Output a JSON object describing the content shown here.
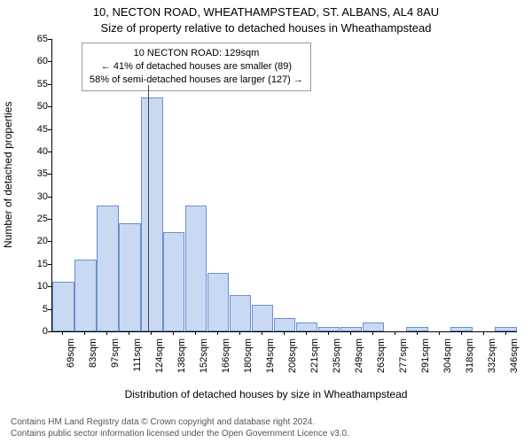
{
  "chart": {
    "type": "histogram",
    "title_line1": "10, NECTON ROAD, WHEATHAMPSTEAD, ST. ALBANS, AL4 8AU",
    "title_line2": "Size of property relative to detached houses in Wheathampstead",
    "ylabel": "Number of detached properties",
    "xlabel": "Distribution of detached houses by size in Wheathampstead",
    "background_color": "#ffffff",
    "axis_color": "#000000",
    "bar_fill": "#c9d9f2",
    "bar_border": "#6a8fd0",
    "ylim": [
      0,
      65
    ],
    "ytick_step": 5,
    "yticks": [
      0,
      5,
      10,
      15,
      20,
      25,
      30,
      35,
      40,
      45,
      50,
      55,
      60,
      65
    ],
    "x_categories": [
      "69sqm",
      "83sqm",
      "97sqm",
      "111sqm",
      "124sqm",
      "138sqm",
      "152sqm",
      "166sqm",
      "180sqm",
      "194sqm",
      "208sqm",
      "221sqm",
      "235sqm",
      "249sqm",
      "263sqm",
      "277sqm",
      "291sqm",
      "304sqm",
      "318sqm",
      "332sqm",
      "346sqm"
    ],
    "values": [
      11,
      16,
      28,
      24,
      52,
      22,
      28,
      13,
      8,
      6,
      3,
      2,
      1,
      1,
      2,
      0,
      1,
      0,
      1,
      0,
      1
    ],
    "bar_width_ratio": 0.98,
    "title_fontsize": 13,
    "label_fontsize": 12,
    "tick_fontsize": 11,
    "marker": {
      "bin_index": 4,
      "position_in_bin": 0.35
    },
    "annotation": {
      "line1": "10 NECTON ROAD: 129sqm",
      "line2": "← 41% of detached houses are smaller (89)",
      "line3": "58% of semi-detached houses are larger (127) →"
    }
  },
  "footer": {
    "line1": "Contains HM Land Registry data © Crown copyright and database right 2024.",
    "line2": "Contains public sector information licensed under the Open Government Licence v3.0."
  }
}
